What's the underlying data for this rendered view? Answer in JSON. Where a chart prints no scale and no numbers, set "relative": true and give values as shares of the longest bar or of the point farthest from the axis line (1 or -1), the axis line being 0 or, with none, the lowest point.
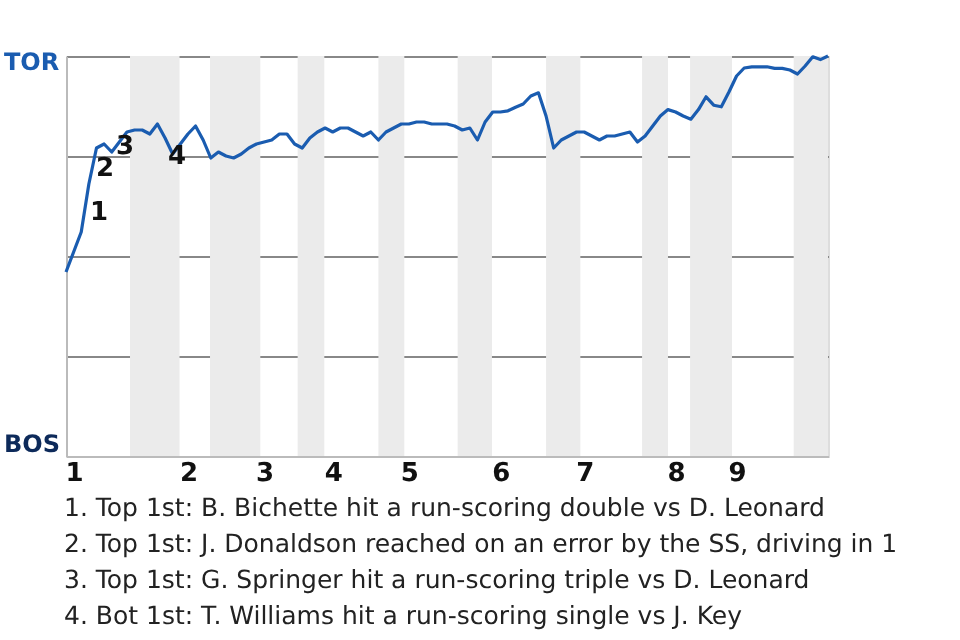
{
  "chart_data": {
    "type": "line",
    "relative": true,
    "categories": [
      null,
      "1",
      null,
      null,
      null,
      null,
      null,
      null,
      null,
      null,
      null,
      null,
      null,
      null,
      null,
      null,
      "2",
      null,
      null,
      null,
      null,
      null,
      null,
      null,
      null,
      null,
      "3",
      null,
      null,
      null,
      null,
      null,
      null,
      null,
      null,
      "4",
      null,
      null,
      null,
      null,
      null,
      null,
      null,
      null,
      null,
      "5",
      null,
      null,
      null,
      null,
      null,
      null,
      null,
      null,
      null,
      null,
      null,
      "6",
      null,
      null,
      null,
      null,
      null,
      null,
      null,
      null,
      null,
      null,
      "7",
      null,
      null,
      null,
      null,
      null,
      null,
      null,
      null,
      null,
      null,
      null,
      "8",
      null,
      null,
      null,
      null,
      null,
      null,
      null,
      "9",
      null,
      null,
      null,
      null,
      null,
      null,
      null,
      null,
      null,
      null,
      null,
      null
    ],
    "series": [
      {
        "color": "#1a5cb0",
        "values": [
          0.46,
          0.51,
          0.56,
          0.68,
          0.77,
          0.78,
          0.76,
          0.785,
          0.81,
          0.815,
          0.815,
          0.805,
          0.83,
          0.795,
          0.755,
          0.78,
          0.805,
          0.825,
          0.79,
          0.745,
          0.76,
          0.75,
          0.745,
          0.755,
          0.77,
          0.78,
          0.785,
          0.79,
          0.805,
          0.805,
          0.78,
          0.77,
          0.795,
          0.81,
          0.82,
          0.81,
          0.82,
          0.82,
          0.81,
          0.8,
          0.81,
          0.79,
          0.81,
          0.82,
          0.83,
          0.83,
          0.835,
          0.835,
          0.83,
          0.83,
          0.83,
          0.825,
          0.815,
          0.82,
          0.79,
          0.835,
          0.86,
          0.86,
          0.863,
          0.872,
          0.88,
          0.9,
          0.908,
          0.85,
          0.77,
          0.79,
          0.8,
          0.81,
          0.81,
          0.8,
          0.79,
          0.8,
          0.8,
          0.805,
          0.81,
          0.785,
          0.8,
          0.825,
          0.85,
          0.866,
          0.86,
          0.85,
          0.842,
          0.866,
          0.898,
          0.877,
          0.873,
          0.91,
          0.95,
          0.97,
          0.973,
          0.973,
          0.973,
          0.969,
          0.969,
          0.965,
          0.955,
          0.975,
          0.998,
          0.991,
          1
        ]
      }
    ],
    "grid": "y",
    "annotations": [
      "TOR",
      "BOS",
      "1",
      "2",
      "3",
      "4",
      "1. Top 1st: B. Bichette hit a run-scoring double vs D. Leonard",
      "2. Top 1st: J. Donaldson reached on an error by the SS, driving in 1",
      "3. Top 1st: G. Springer hit a run-scoring triple vs D. Leonard",
      "4. Bot 1st: T. Williams hit a run-scoring single vs J. Key"
    ]
  }
}
